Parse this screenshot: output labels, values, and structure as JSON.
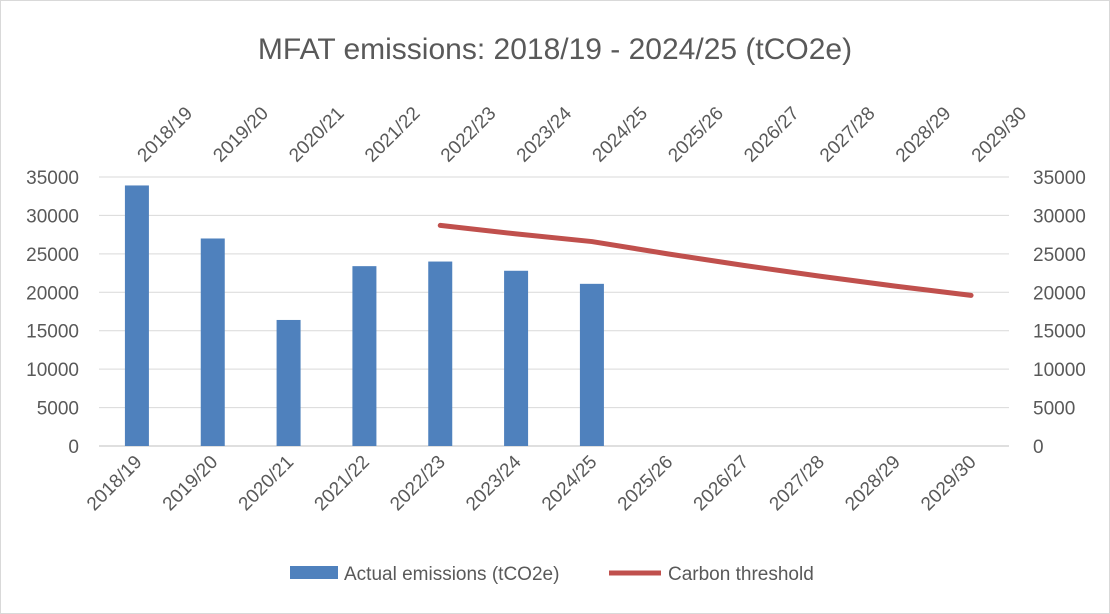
{
  "chart_data": {
    "type": "bar",
    "title": "MFAT emissions: 2018/19 - 2024/25 (tCO2e)",
    "categories": [
      "2018/19",
      "2019/20",
      "2020/21",
      "2021/22",
      "2022/23",
      "2023/24",
      "2024/25",
      "2025/26",
      "2026/27",
      "2027/28",
      "2028/29",
      "2029/30"
    ],
    "series": [
      {
        "name": "Actual emissions (tCO2e)",
        "type": "bar",
        "color": "#4f81bd",
        "values": [
          33900,
          27000,
          16400,
          23400,
          24000,
          22800,
          21100,
          null,
          null,
          null,
          null,
          null
        ]
      },
      {
        "name": "Carbon threshold",
        "type": "line",
        "color": "#c0504d",
        "values": [
          null,
          null,
          null,
          null,
          28700,
          27600,
          26600,
          25000,
          23500,
          22100,
          20800,
          19600
        ]
      }
    ],
    "ylim": [
      0,
      35000
    ],
    "yticks": [
      0,
      5000,
      10000,
      15000,
      20000,
      25000,
      30000,
      35000
    ],
    "y_axis_sides": [
      "left",
      "right"
    ],
    "x_axis_sides": [
      "top",
      "bottom"
    ],
    "grid": true,
    "legend_position": "bottom"
  }
}
